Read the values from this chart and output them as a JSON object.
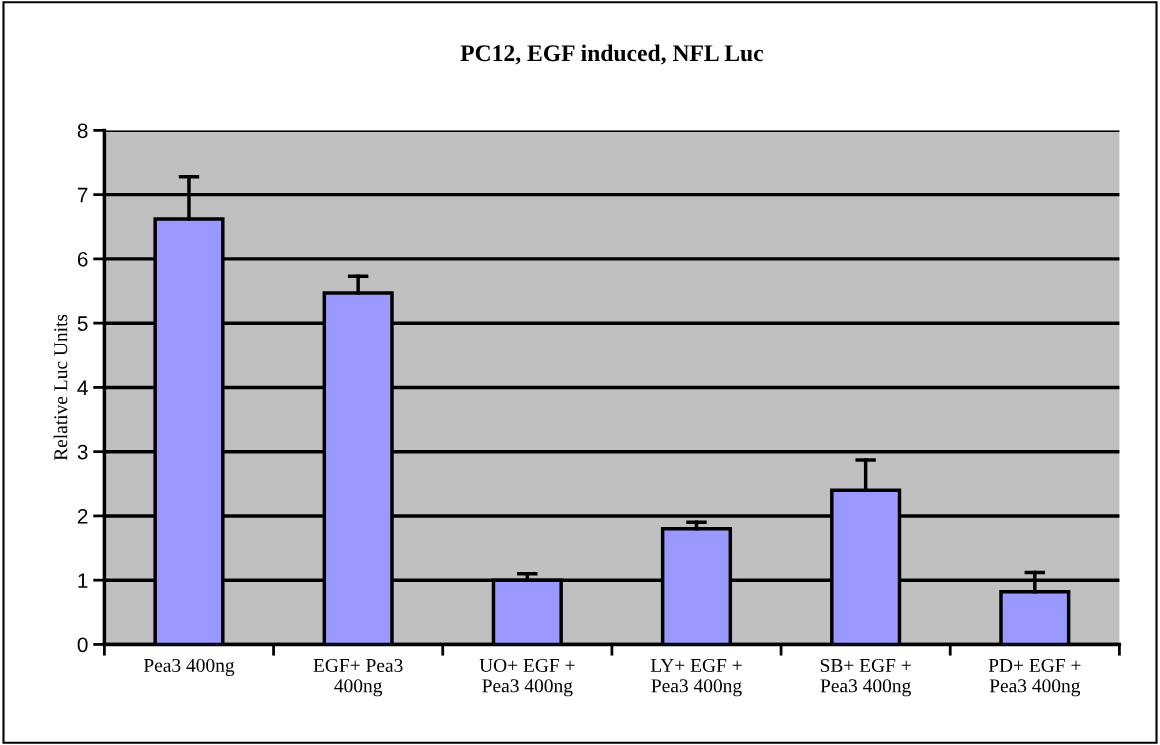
{
  "chart_data": {
    "type": "bar",
    "title": "PC12, EGF induced, NFL Luc",
    "ylabel": "Relative Luc Units",
    "categories": [
      "Pea3 400ng",
      "EGF+ Pea3\n400ng",
      "UO+ EGF +\nPea3 400ng",
      "LY+ EGF +\nPea3 400ng",
      "SB+ EGF +\nPea3 400ng",
      "PD+ EGF +\nPea3 400ng"
    ],
    "values": [
      6.62,
      5.47,
      1.0,
      1.8,
      2.4,
      0.82
    ],
    "errors": [
      [
        6.62,
        7.28
      ],
      [
        5.47,
        5.73
      ],
      [
        1.0,
        1.1
      ],
      [
        1.8,
        1.9
      ],
      [
        2.4,
        2.87
      ],
      [
        0.82,
        1.12
      ]
    ],
    "color": "#9999ff",
    "ylim": [
      0,
      8
    ],
    "yticks": [
      0,
      1,
      2,
      3,
      4,
      5,
      6,
      7,
      8
    ],
    "grid": "y",
    "legend": false
  }
}
